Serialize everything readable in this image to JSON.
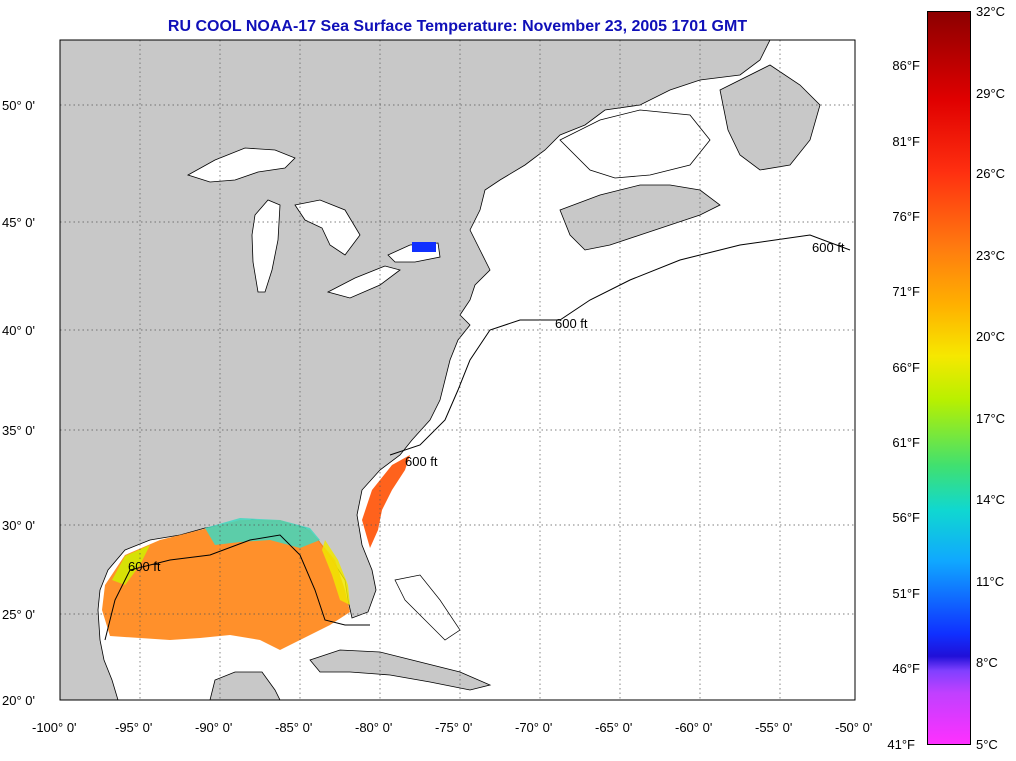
{
  "title": "RU COOL  NOAA-17  Sea Surface Temperature:  November 23, 2005 1701 GMT",
  "map": {
    "lon_range": [
      -100,
      -50
    ],
    "lat_range": [
      20,
      52.5
    ],
    "lat_labels": [
      "50° 0'",
      "45° 0'",
      "40° 0'",
      "35° 0'",
      "30° 0'",
      "25° 0'",
      "20° 0'"
    ],
    "lat_values": [
      50,
      45,
      40,
      35,
      30,
      25,
      20
    ],
    "lon_labels": [
      "-100° 0'",
      "-95° 0'",
      "-90° 0'",
      "-85° 0'",
      "-80° 0'",
      "-75° 0'",
      "-70° 0'",
      "-65° 0'",
      "-60° 0'",
      "-55° 0'",
      "-50° 0'"
    ],
    "lon_values": [
      -100,
      -95,
      -90,
      -85,
      -80,
      -75,
      -70,
      -65,
      -60,
      -55,
      -50
    ],
    "contour_label": "600 ft",
    "colors": {
      "land": "#c8c8c8",
      "ocean": "#ffffff",
      "grid": "#555555"
    }
  },
  "colorbar": {
    "celsius_labels": [
      "32°C",
      "29°C",
      "26°C",
      "23°C",
      "20°C",
      "17°C",
      "14°C",
      "11°C",
      "8°C",
      "5°C"
    ],
    "fahrenheit_labels": [
      "86°F",
      "81°F",
      "76°F",
      "71°F",
      "66°F",
      "61°F",
      "56°F",
      "51°F",
      "46°F",
      "41°F"
    ],
    "range_c": [
      5,
      32
    ]
  }
}
